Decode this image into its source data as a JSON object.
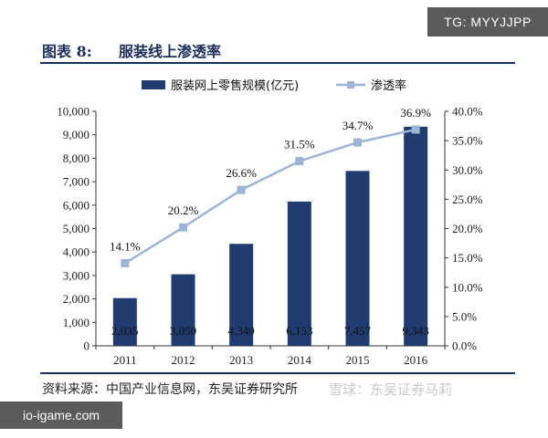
{
  "header": {
    "figure_label": "图表 8:",
    "figure_title": "服装线上渗透率"
  },
  "footer": {
    "source": "资料来源：中国产业信息网，东吴证券研究所"
  },
  "watermarks": {
    "tag": "TG: MYYJJPP",
    "site": "io-igame.com",
    "xueqiu": "雪球：东吴证券马莉"
  },
  "colors": {
    "bar": "#1f3b70",
    "line": "#9db4d6",
    "axis": "#333333",
    "rule": "#1b2d5a"
  },
  "chart_data": {
    "type": "bar+line",
    "categories": [
      "2011",
      "2012",
      "2013",
      "2014",
      "2015",
      "2016"
    ],
    "series": [
      {
        "name": "服装网上零售规模(亿元)",
        "type": "bar",
        "axis": "left",
        "values": [
          2035,
          3050,
          4349,
          6153,
          7457,
          9343
        ],
        "labels": [
          "2,035",
          "3,050",
          "4,349",
          "6,153",
          "7,457",
          "9,343"
        ]
      },
      {
        "name": "渗透率",
        "type": "line",
        "axis": "right",
        "values": [
          14.1,
          20.2,
          26.6,
          31.5,
          34.7,
          36.9
        ],
        "labels": [
          "14.1%",
          "20.2%",
          "26.6%",
          "31.5%",
          "34.7%",
          "36.9%"
        ]
      }
    ],
    "y_left": {
      "ylim": [
        0,
        10000
      ],
      "ticks": [
        0,
        1000,
        2000,
        3000,
        4000,
        5000,
        6000,
        7000,
        8000,
        9000,
        10000
      ],
      "tick_labels": [
        "0",
        "1,000",
        "2,000",
        "3,000",
        "4,000",
        "5,000",
        "6,000",
        "7,000",
        "8,000",
        "9,000",
        "10,000"
      ]
    },
    "y_right": {
      "ylim": [
        0,
        40
      ],
      "ticks": [
        0,
        5,
        10,
        15,
        20,
        25,
        30,
        35,
        40
      ],
      "tick_labels": [
        "0.0%",
        "5.0%",
        "10.0%",
        "15.0%",
        "20.0%",
        "25.0%",
        "30.0%",
        "35.0%",
        "40.0%"
      ]
    },
    "legend_position": "top",
    "grid": false
  }
}
